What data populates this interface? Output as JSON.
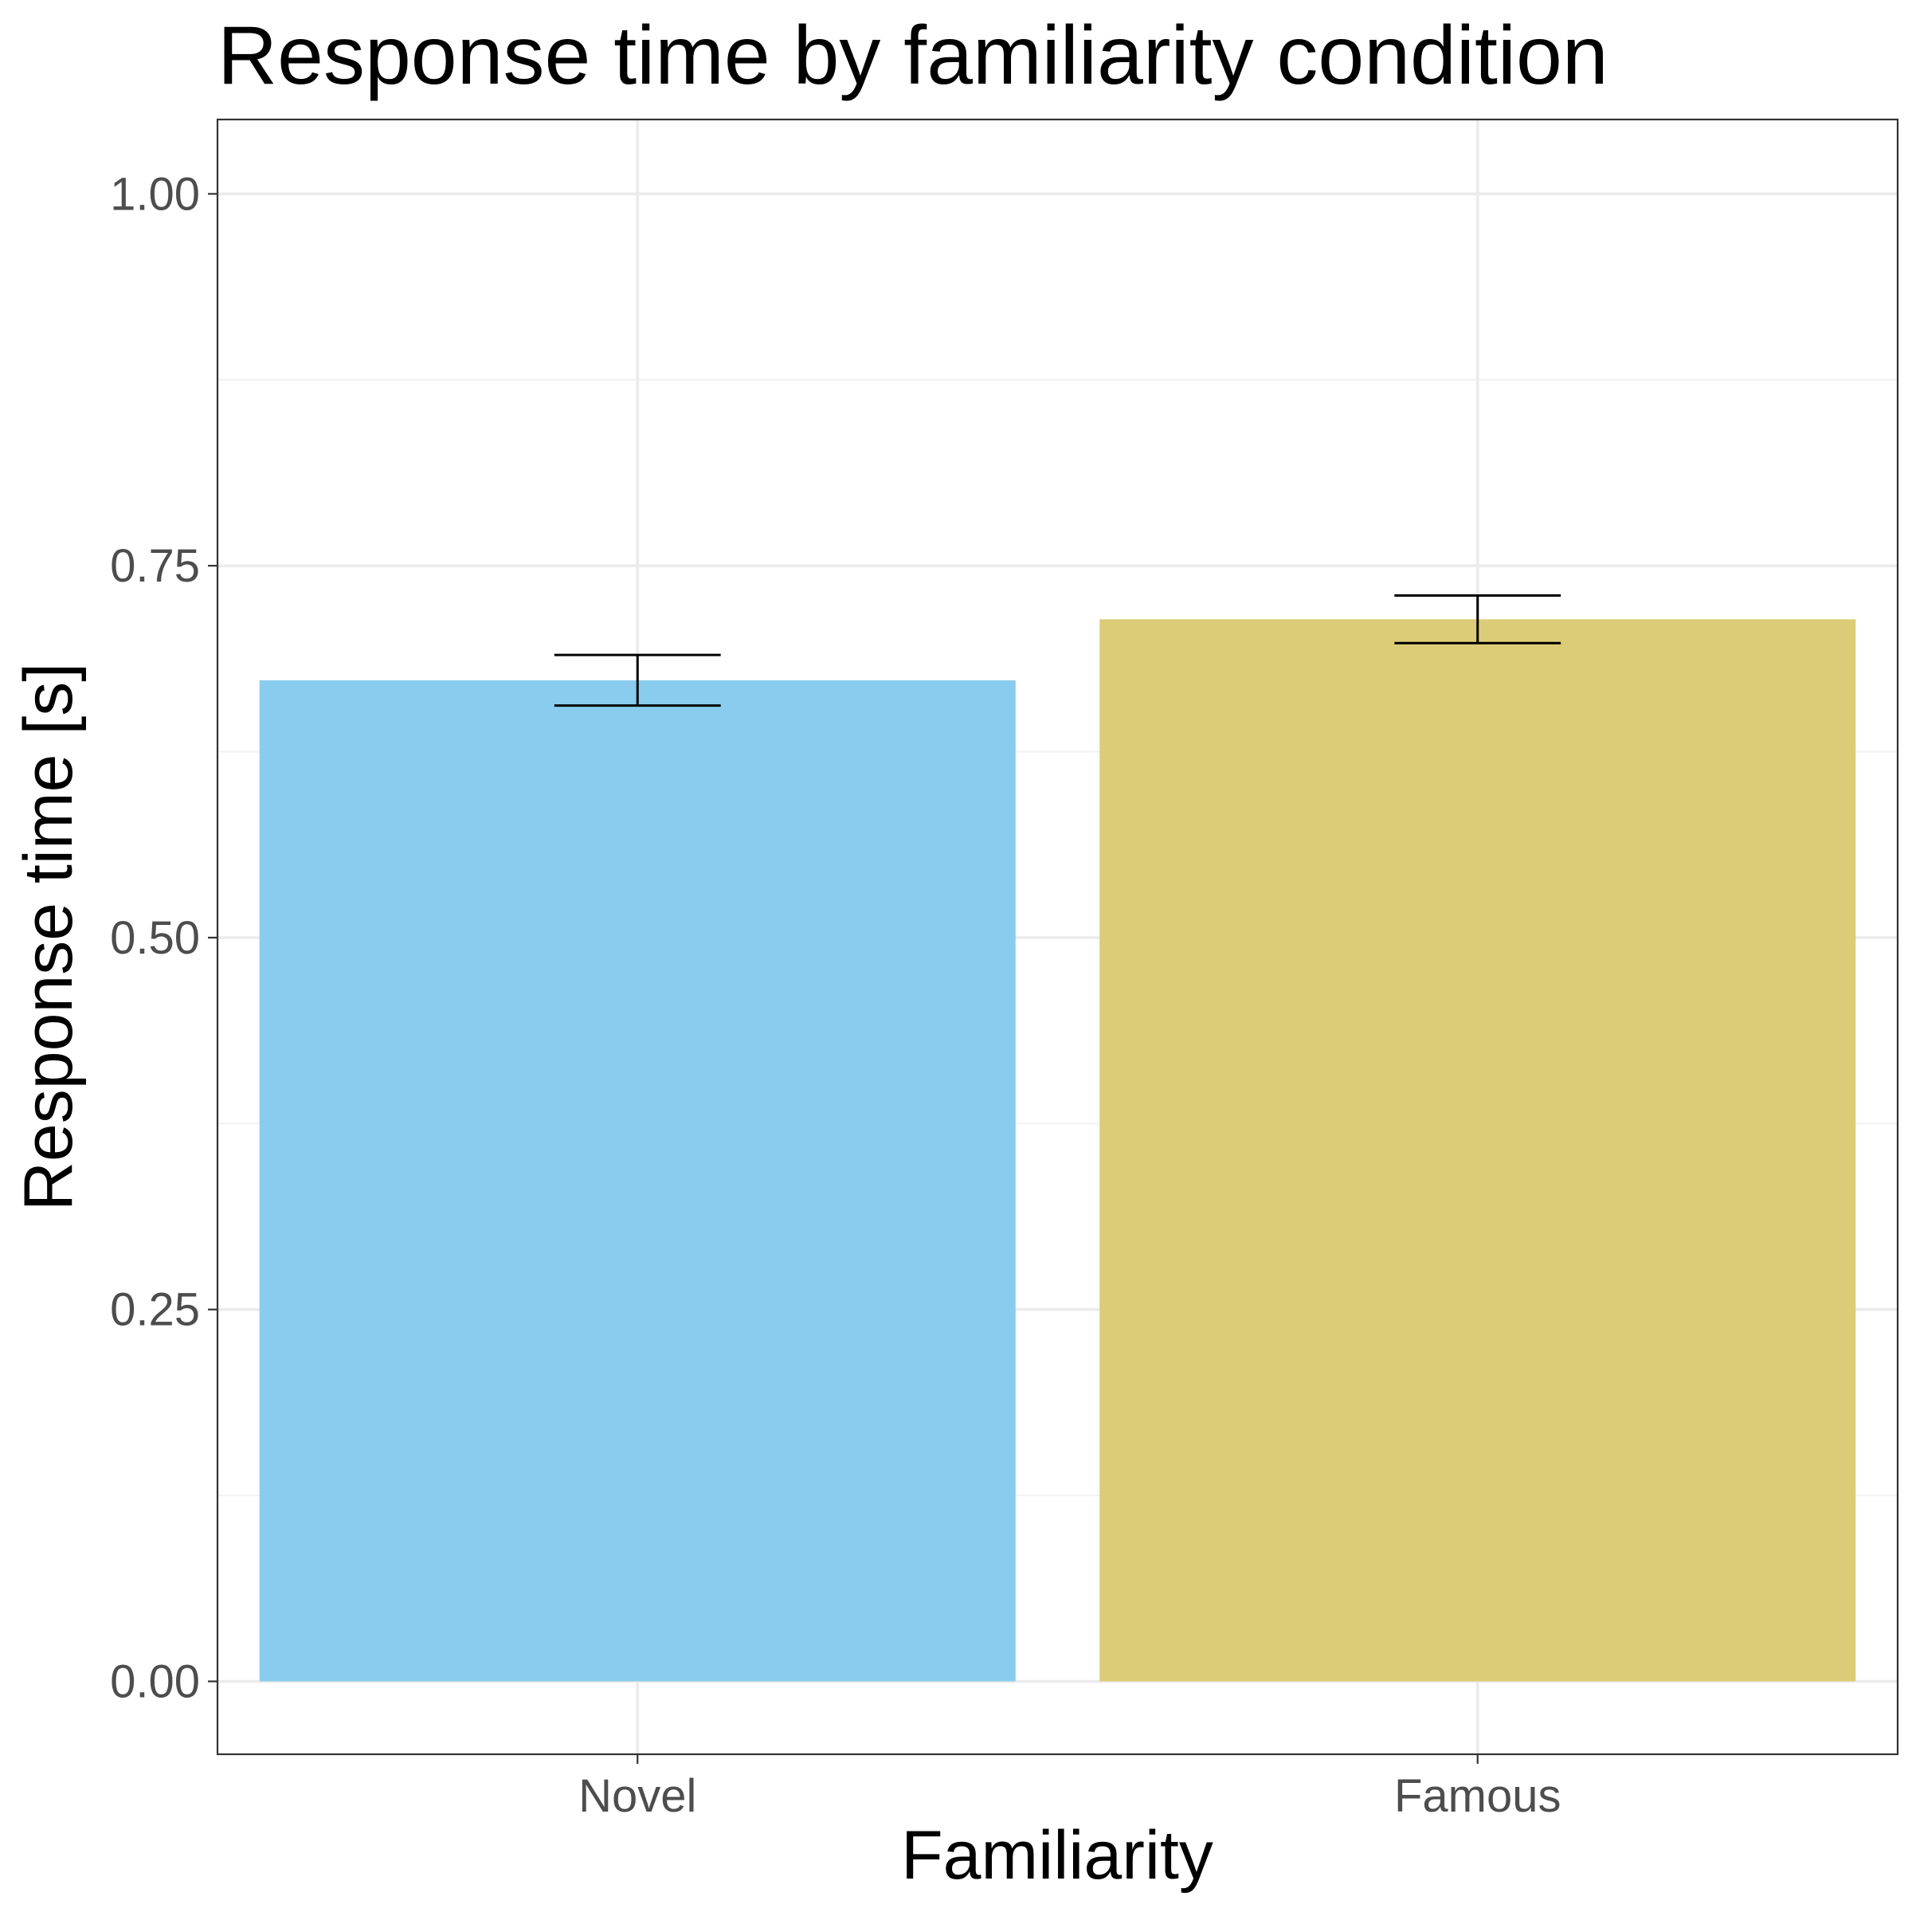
{
  "chart_data": {
    "type": "bar",
    "title": "Response time by familiarity condition",
    "xlabel": "Familiarity",
    "ylabel": "Response time [s]",
    "categories": [
      "Novel",
      "Famous"
    ],
    "values": [
      0.673,
      0.714
    ],
    "error_bars": [
      {
        "lower": 0.656,
        "upper": 0.69
      },
      {
        "lower": 0.698,
        "upper": 0.73
      }
    ],
    "colors": [
      "#89CCED",
      "#DDCC77"
    ],
    "ylim": [
      -0.049,
      1.05
    ],
    "yticks": [
      "0.00",
      "0.25",
      "0.50",
      "0.75",
      "1.00"
    ],
    "ytick_values": [
      0,
      0.25,
      0.5,
      0.75,
      1.0
    ],
    "grid": true,
    "legend": "none"
  }
}
